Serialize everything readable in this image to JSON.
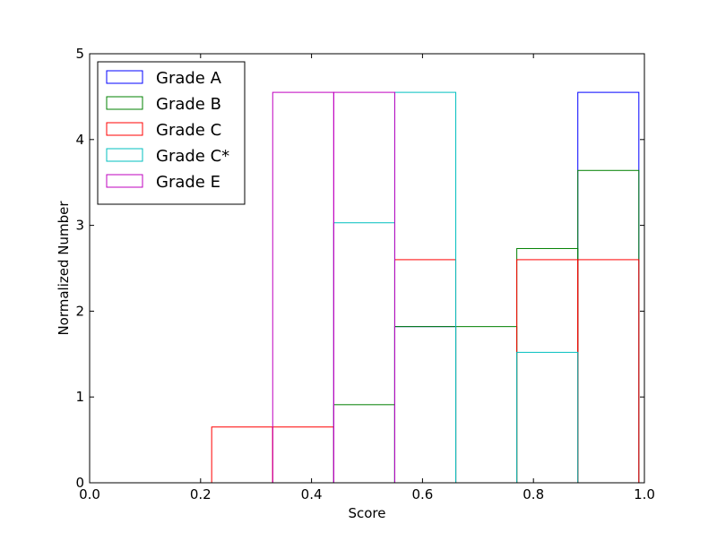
{
  "chart_data": {
    "type": "histogram",
    "xlabel": "Score",
    "ylabel": "Normalized Number",
    "xlim": [
      0.0,
      1.0
    ],
    "ylim": [
      0,
      5
    ],
    "x_ticks": [
      "0.0",
      "0.2",
      "0.4",
      "0.6",
      "0.8",
      "1.0"
    ],
    "y_ticks": [
      "0",
      "1",
      "2",
      "3",
      "4",
      "5"
    ],
    "x_tick_values": [
      0.0,
      0.2,
      0.4,
      0.6,
      0.8,
      1.0
    ],
    "y_tick_values": [
      0,
      1,
      2,
      3,
      4,
      5
    ],
    "grid": false,
    "legend_position": "top-left",
    "series": [
      {
        "name": "Grade A",
        "color": "#0000ff",
        "bins": [
          {
            "x0": 0.55,
            "x1": 0.66,
            "y": 1.82
          },
          {
            "x0": 0.88,
            "x1": 0.99,
            "y": 4.55
          }
        ]
      },
      {
        "name": "Grade B",
        "color": "#008000",
        "bins": [
          {
            "x0": 0.44,
            "x1": 0.55,
            "y": 0.91
          },
          {
            "x0": 0.55,
            "x1": 0.66,
            "y": 1.82
          },
          {
            "x0": 0.66,
            "x1": 0.77,
            "y": 1.82
          },
          {
            "x0": 0.77,
            "x1": 0.88,
            "y": 2.73
          },
          {
            "x0": 0.88,
            "x1": 0.99,
            "y": 3.64
          }
        ]
      },
      {
        "name": "Grade C",
        "color": "#ff0000",
        "bins": [
          {
            "x0": 0.22,
            "x1": 0.33,
            "y": 0.65
          },
          {
            "x0": 0.33,
            "x1": 0.44,
            "y": 0.65
          },
          {
            "x0": 0.55,
            "x1": 0.66,
            "y": 2.6
          },
          {
            "x0": 0.77,
            "x1": 0.88,
            "y": 2.6
          },
          {
            "x0": 0.88,
            "x1": 0.99,
            "y": 2.6
          }
        ]
      },
      {
        "name": "Grade C*",
        "color": "#00bfbf",
        "bins": [
          {
            "x0": 0.44,
            "x1": 0.55,
            "y": 3.03
          },
          {
            "x0": 0.55,
            "x1": 0.66,
            "y": 4.55
          },
          {
            "x0": 0.77,
            "x1": 0.88,
            "y": 1.52
          }
        ]
      },
      {
        "name": "Grade E",
        "color": "#bf00bf",
        "bins": [
          {
            "x0": 0.33,
            "x1": 0.44,
            "y": 4.55
          },
          {
            "x0": 0.44,
            "x1": 0.55,
            "y": 4.55
          }
        ]
      }
    ]
  }
}
